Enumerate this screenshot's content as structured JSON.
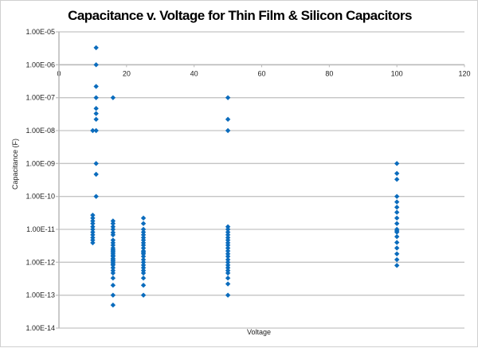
{
  "chart_data": {
    "type": "scatter",
    "title": "Capacitance v. Voltage for Thin Film & Silicon Capacitors",
    "xlabel": "Voltage",
    "ylabel": "Capacitance (F)",
    "xlim": [
      0,
      120
    ],
    "ylim": [
      1e-14,
      1e-05
    ],
    "yscale": "log",
    "x_ticks": [
      "0",
      "20",
      "40",
      "60",
      "80",
      "100",
      "120"
    ],
    "y_ticks": [
      "1.00E-05",
      "1.00E-06",
      "1.00E-07",
      "1.00E-08",
      "1.00E-09",
      "1.00E-10",
      "1.00E-11",
      "1.00E-12",
      "1.00E-13",
      "1.00E-14"
    ],
    "x_axis_crosses_at": 1e-06,
    "grid": "horizontal",
    "legend": "none",
    "marker": "diamond",
    "color": "#0b6cbd",
    "groups": [
      {
        "x": 10,
        "y": [
          1e-08,
          2.7e-11,
          2.2e-11,
          1.8e-11,
          1.5e-11,
          1.2e-11,
          1e-11,
          8.2e-12,
          6.8e-12,
          5.6e-12,
          4.7e-12,
          3.9e-12
        ]
      },
      {
        "x": 11,
        "y": [
          3.3e-06,
          1e-06,
          2.2e-07,
          1e-07,
          4.7e-08,
          3.3e-08,
          2.2e-08,
          1e-08,
          1e-09,
          4.7e-10,
          1e-10
        ]
      },
      {
        "x": 16,
        "y": [
          1e-07,
          1.8e-11,
          1.5e-11,
          1.2e-11,
          1e-11,
          8e-12,
          6.8e-12,
          4.7e-12,
          3.9e-12,
          3.3e-12,
          2.7e-12,
          2.4e-12,
          2.2e-12,
          2e-12,
          1.8e-12,
          1.6e-12,
          1.5e-12,
          1.3e-12,
          1.2e-12,
          1.1e-12,
          1e-12,
          9e-13,
          8.2e-13,
          6.8e-13,
          5.6e-13,
          4.7e-13,
          3.3e-13,
          2e-13,
          1e-13,
          5e-14
        ]
      },
      {
        "x": 25,
        "y": [
          2.2e-11,
          1.5e-11,
          1e-11,
          8.2e-12,
          6.8e-12,
          5.6e-12,
          4.7e-12,
          3.9e-12,
          3.3e-12,
          2.7e-12,
          2.2e-12,
          2e-12,
          1.8e-12,
          1.5e-12,
          1.2e-12,
          1e-12,
          8.2e-13,
          6.8e-13,
          5.6e-13,
          4.7e-13,
          3.3e-13,
          2e-13,
          1e-13
        ]
      },
      {
        "x": 50,
        "y": [
          1e-07,
          2.2e-08,
          1e-08,
          1.2e-11,
          1e-11,
          8.2e-12,
          6.8e-12,
          5.6e-12,
          4.7e-12,
          3.9e-12,
          3.3e-12,
          2.7e-12,
          2.2e-12,
          1.8e-12,
          1.5e-12,
          1.2e-12,
          1e-12,
          8.2e-13,
          6.8e-13,
          5.6e-13,
          4.7e-13,
          3.3e-13,
          2.2e-13,
          1e-13
        ]
      },
      {
        "x": 100,
        "y": [
          1e-09,
          5e-10,
          3.3e-10,
          1e-10,
          6.8e-11,
          4.7e-11,
          3.3e-11,
          2.2e-11,
          1.5e-11,
          1e-11,
          9e-12,
          8.2e-12,
          6e-12,
          4e-12,
          2.7e-12,
          1.8e-12,
          1.2e-12,
          8e-13
        ]
      }
    ]
  }
}
